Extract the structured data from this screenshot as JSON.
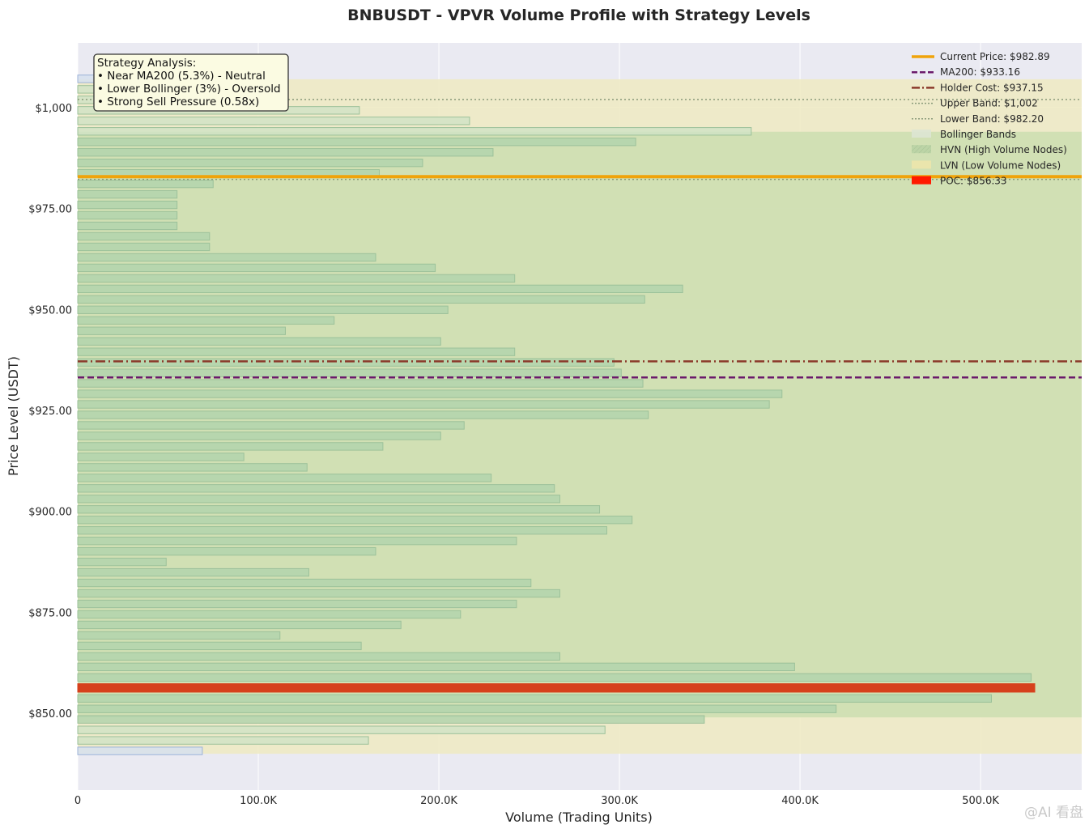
{
  "chart_data": {
    "type": "bar",
    "orientation": "horizontal",
    "title": "BNBUSDT - VPVR Volume Profile with Strategy Levels",
    "xlabel": "Volume (Trading Units)",
    "ylabel": "Price Level (USDT)",
    "xlim": [
      0,
      556000
    ],
    "ylim": [
      831,
      1016
    ],
    "x_ticks": [
      {
        "value": 0,
        "label": "0"
      },
      {
        "value": 100000,
        "label": "100.0K"
      },
      {
        "value": 200000,
        "label": "200.0K"
      },
      {
        "value": 300000,
        "label": "300.0K"
      },
      {
        "value": 400000,
        "label": "400.0K"
      },
      {
        "value": 500000,
        "label": "500.0K"
      }
    ],
    "y_ticks": [
      {
        "value": 850,
        "label": "$850.00"
      },
      {
        "value": 875,
        "label": "$875.00"
      },
      {
        "value": 900,
        "label": "$900.00"
      },
      {
        "value": 925,
        "label": "$925.00"
      },
      {
        "value": 950,
        "label": "$950.00"
      },
      {
        "value": 975,
        "label": "$975.00"
      },
      {
        "value": 1000,
        "label": "$1,000"
      }
    ],
    "grid": true,
    "legend_position": "top-right",
    "bins": [
      {
        "price": 840.7,
        "volume": 69000,
        "node": "normal"
      },
      {
        "price": 843.3,
        "volume": 161000,
        "node": "lvn"
      },
      {
        "price": 845.9,
        "volume": 292000,
        "node": "lvn"
      },
      {
        "price": 848.5,
        "volume": 347000,
        "node": "hvn"
      },
      {
        "price": 851.1,
        "volume": 420000,
        "node": "hvn"
      },
      {
        "price": 853.7,
        "volume": 506000,
        "node": "hvn"
      },
      {
        "price": 856.3,
        "volume": 530000,
        "node": "poc"
      },
      {
        "price": 858.9,
        "volume": 528000,
        "node": "hvn"
      },
      {
        "price": 861.5,
        "volume": 397000,
        "node": "hvn"
      },
      {
        "price": 864.1,
        "volume": 267000,
        "node": "hvn"
      },
      {
        "price": 866.7,
        "volume": 157000,
        "node": "hvn"
      },
      {
        "price": 869.3,
        "volume": 112000,
        "node": "hvn"
      },
      {
        "price": 871.9,
        "volume": 179000,
        "node": "hvn"
      },
      {
        "price": 874.5,
        "volume": 212000,
        "node": "hvn"
      },
      {
        "price": 877.1,
        "volume": 243000,
        "node": "hvn"
      },
      {
        "price": 879.7,
        "volume": 267000,
        "node": "hvn"
      },
      {
        "price": 882.3,
        "volume": 251000,
        "node": "hvn"
      },
      {
        "price": 884.9,
        "volume": 128000,
        "node": "hvn"
      },
      {
        "price": 887.5,
        "volume": 49000,
        "node": "hvn"
      },
      {
        "price": 890.1,
        "volume": 165000,
        "node": "hvn"
      },
      {
        "price": 892.7,
        "volume": 243000,
        "node": "hvn"
      },
      {
        "price": 895.3,
        "volume": 293000,
        "node": "hvn"
      },
      {
        "price": 897.9,
        "volume": 307000,
        "node": "hvn"
      },
      {
        "price": 900.5,
        "volume": 289000,
        "node": "hvn"
      },
      {
        "price": 903.1,
        "volume": 267000,
        "node": "hvn"
      },
      {
        "price": 905.7,
        "volume": 264000,
        "node": "hvn"
      },
      {
        "price": 908.3,
        "volume": 229000,
        "node": "hvn"
      },
      {
        "price": 910.9,
        "volume": 127000,
        "node": "hvn"
      },
      {
        "price": 913.5,
        "volume": 92000,
        "node": "hvn"
      },
      {
        "price": 916.1,
        "volume": 169000,
        "node": "hvn"
      },
      {
        "price": 918.7,
        "volume": 201000,
        "node": "hvn"
      },
      {
        "price": 921.3,
        "volume": 214000,
        "node": "hvn"
      },
      {
        "price": 923.9,
        "volume": 316000,
        "node": "hvn"
      },
      {
        "price": 926.5,
        "volume": 383000,
        "node": "hvn"
      },
      {
        "price": 929.1,
        "volume": 390000,
        "node": "hvn"
      },
      {
        "price": 931.7,
        "volume": 313000,
        "node": "hvn"
      },
      {
        "price": 934.3,
        "volume": 301000,
        "node": "hvn"
      },
      {
        "price": 936.9,
        "volume": 297000,
        "node": "hvn"
      },
      {
        "price": 939.5,
        "volume": 242000,
        "node": "hvn"
      },
      {
        "price": 942.1,
        "volume": 201000,
        "node": "hvn"
      },
      {
        "price": 944.7,
        "volume": 115000,
        "node": "hvn"
      },
      {
        "price": 947.3,
        "volume": 142000,
        "node": "hvn"
      },
      {
        "price": 949.9,
        "volume": 205000,
        "node": "hvn"
      },
      {
        "price": 952.5,
        "volume": 314000,
        "node": "hvn"
      },
      {
        "price": 955.1,
        "volume": 335000,
        "node": "hvn"
      },
      {
        "price": 957.7,
        "volume": 242000,
        "node": "hvn"
      },
      {
        "price": 960.3,
        "volume": 198000,
        "node": "hvn"
      },
      {
        "price": 962.9,
        "volume": 165000,
        "node": "hvn"
      },
      {
        "price": 965.5,
        "volume": 73000,
        "node": "hvn"
      },
      {
        "price": 968.1,
        "volume": 73000,
        "node": "hvn"
      },
      {
        "price": 970.7,
        "volume": 55000,
        "node": "hvn"
      },
      {
        "price": 973.3,
        "volume": 55000,
        "node": "hvn"
      },
      {
        "price": 975.9,
        "volume": 55000,
        "node": "hvn"
      },
      {
        "price": 978.5,
        "volume": 55000,
        "node": "hvn"
      },
      {
        "price": 981.1,
        "volume": 75000,
        "node": "hvn"
      },
      {
        "price": 983.7,
        "volume": 167000,
        "node": "hvn"
      },
      {
        "price": 986.3,
        "volume": 191000,
        "node": "hvn"
      },
      {
        "price": 988.9,
        "volume": 230000,
        "node": "hvn"
      },
      {
        "price": 991.5,
        "volume": 309000,
        "node": "hvn"
      },
      {
        "price": 994.1,
        "volume": 373000,
        "node": "lvn"
      },
      {
        "price": 996.7,
        "volume": 217000,
        "node": "lvn"
      },
      {
        "price": 999.3,
        "volume": 156000,
        "node": "lvn"
      },
      {
        "price": 1001.9,
        "volume": 62000,
        "node": "lvn"
      },
      {
        "price": 1004.5,
        "volume": 45000,
        "node": "lvn"
      },
      {
        "price": 1007.1,
        "volume": 12000,
        "node": "normal"
      }
    ],
    "levels": {
      "current_price": 982.89,
      "ma200": 933.16,
      "holder_cost": 937.15,
      "upper_band": 1002,
      "lower_band": 982.2,
      "poc": 856.33
    },
    "zones": {
      "value_area": [
        840,
        1007
      ],
      "hvn_range": [
        849,
        994
      ]
    },
    "legend": [
      {
        "label": "Current Price: $982.89",
        "style": "solid-thick",
        "color": "#f0a30a"
      },
      {
        "label": "MA200: $933.16",
        "style": "dashed",
        "color": "#6b1a6b"
      },
      {
        "label": "Holder Cost: $937.15",
        "style": "dashdot",
        "color": "#8b3a2b"
      },
      {
        "label": "Upper Band: $1,002",
        "style": "dotted",
        "color": "#8a9a7a"
      },
      {
        "label": "Lower Band: $982.20",
        "style": "dotted",
        "color": "#8a9a7a"
      },
      {
        "label": "Bollinger Bands",
        "style": "patch",
        "color": "#dde6d3"
      },
      {
        "label": "HVN (High Volume Nodes)",
        "style": "patch-hatched",
        "color": "#b9d3a4"
      },
      {
        "label": "LVN (Low Volume Nodes)",
        "style": "patch",
        "color": "#ece6ab"
      },
      {
        "label": "POC: $856.33",
        "style": "patch",
        "color": "#ff1a00"
      }
    ],
    "annotation": {
      "heading": "Strategy Analysis:",
      "lines": [
        "• Near MA200 (5.3%) - Neutral",
        "• Lower Bollinger (3%) - Oversold",
        "• Strong Sell Pressure (0.58x)"
      ]
    },
    "colors": {
      "plot_background": "#eaeaf2",
      "lvn_zone": "#eeeac4",
      "hvn_zone": "#cfdfb3",
      "bar_fill": "#b3d4ad",
      "bar_edge": "#9cc19a",
      "poc_bar": "#d6401c",
      "current_price": "#f0a30a",
      "ma200": "#6b1a6b",
      "holder_cost": "#8b3a2b",
      "band": "#8a9a7a"
    }
  },
  "watermark": "@AI 看盘"
}
